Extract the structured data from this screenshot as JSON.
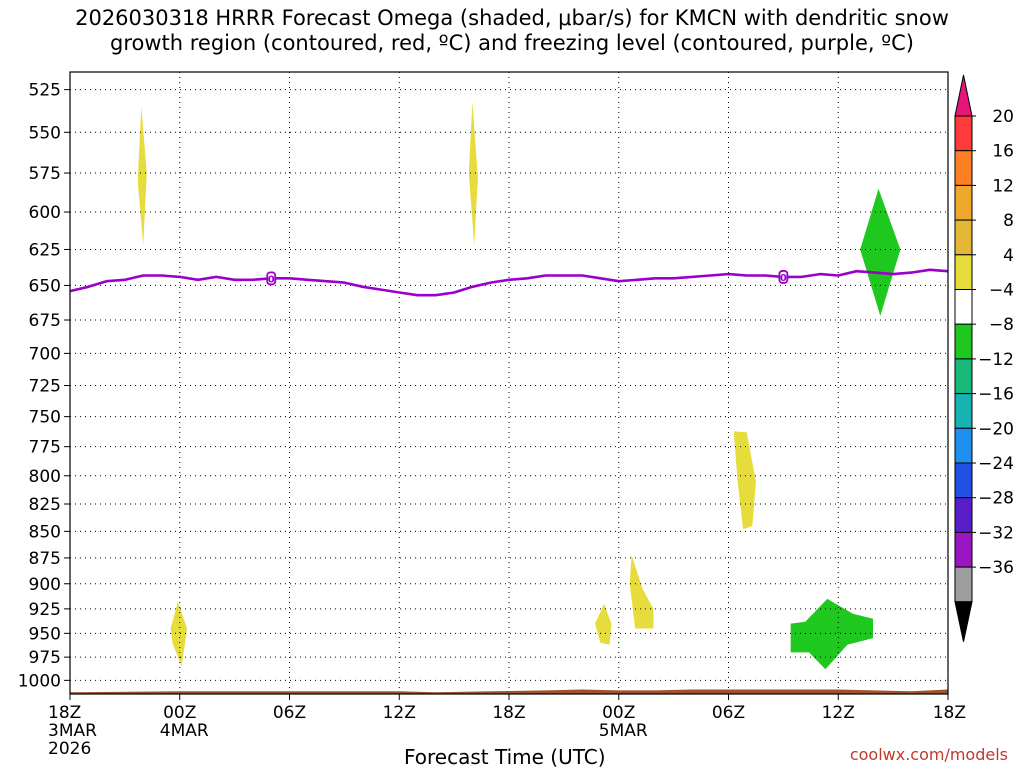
{
  "title": "2026030318 HRRR Forecast Omega (shaded, μbar/s) for KMCN with dendritic snow\ngrowth region (contoured, red, ºC) and freezing level (contoured, purple, ºC)",
  "credit": "coolwx.com/models",
  "chart_data": {
    "type": "heatmap",
    "title": "2026030318 HRRR Forecast Omega (shaded, μbar/s) for KMCN with dendritic snow growth region (contoured, red, ºC) and freezing level (contoured, purple, ºC)",
    "xlabel": "Forecast Time (UTC)",
    "ylabel": "",
    "x_unit": "forecast hour from 2026-03-03 18Z",
    "xlim": [
      0,
      48
    ],
    "ylim": [
      1015,
      515
    ],
    "y_scale": "log-pressure",
    "y_ticks": [
      525,
      550,
      575,
      600,
      625,
      650,
      675,
      700,
      725,
      750,
      775,
      800,
      825,
      850,
      875,
      900,
      925,
      950,
      975,
      1000
    ],
    "x_ticks": [
      {
        "hour": 0,
        "label": "18Z",
        "sub1": "3MAR",
        "sub2": "2026"
      },
      {
        "hour": 6,
        "label": "00Z",
        "sub1": "4MAR",
        "sub2": ""
      },
      {
        "hour": 12,
        "label": "06Z",
        "sub1": "",
        "sub2": ""
      },
      {
        "hour": 18,
        "label": "12Z",
        "sub1": "",
        "sub2": ""
      },
      {
        "hour": 24,
        "label": "18Z",
        "sub1": "",
        "sub2": ""
      },
      {
        "hour": 30,
        "label": "00Z",
        "sub1": "5MAR",
        "sub2": ""
      },
      {
        "hour": 36,
        "label": "06Z",
        "sub1": "",
        "sub2": ""
      },
      {
        "hour": 42,
        "label": "12Z",
        "sub1": "",
        "sub2": ""
      },
      {
        "hour": 48,
        "label": "18Z",
        "sub1": "",
        "sub2": ""
      }
    ],
    "grid": true,
    "colorbar": {
      "position": "right",
      "labels": [
        "20",
        "16",
        "12",
        "8",
        "4",
        "−4",
        "−8",
        "−12",
        "−16",
        "−20",
        "−24",
        "−28",
        "−32",
        "−36"
      ],
      "colors": [
        "#ff3a3a",
        "#ff7f24",
        "#f0a82c",
        "#e3b834",
        "#e6dc3c",
        "#ffffff",
        "#1ec81e",
        "#18b87a",
        "#17b3b3",
        "#2090f0",
        "#2050e6",
        "#5a1ec8",
        "#9b16c2",
        "#9e9e9e"
      ],
      "top_arrow_color": "#e6157a",
      "bottom_arrow_color": "#000000"
    },
    "freezing_level": {
      "color": "#9900cc",
      "label": "0",
      "points": [
        [
          0,
          654
        ],
        [
          1,
          651
        ],
        [
          2,
          647
        ],
        [
          3,
          646
        ],
        [
          4,
          643
        ],
        [
          5,
          643
        ],
        [
          6,
          644
        ],
        [
          7,
          646
        ],
        [
          8,
          644
        ],
        [
          9,
          646
        ],
        [
          10,
          646
        ],
        [
          11,
          645
        ],
        [
          12,
          645
        ],
        [
          13,
          646
        ],
        [
          14,
          647
        ],
        [
          15,
          648
        ],
        [
          16,
          651
        ],
        [
          17,
          653
        ],
        [
          18,
          655
        ],
        [
          19,
          657
        ],
        [
          20,
          657
        ],
        [
          21,
          655
        ],
        [
          22,
          651
        ],
        [
          23,
          648
        ],
        [
          24,
          646
        ],
        [
          25,
          645
        ],
        [
          26,
          643
        ],
        [
          27,
          643
        ],
        [
          28,
          643
        ],
        [
          29,
          645
        ],
        [
          30,
          647
        ],
        [
          31,
          646
        ],
        [
          32,
          645
        ],
        [
          33,
          645
        ],
        [
          34,
          644
        ],
        [
          35,
          643
        ],
        [
          36,
          642
        ],
        [
          37,
          643
        ],
        [
          38,
          643
        ],
        [
          39,
          644
        ],
        [
          40,
          644
        ],
        [
          41,
          642
        ],
        [
          42,
          643
        ],
        [
          43,
          640
        ],
        [
          44,
          641
        ],
        [
          45,
          642
        ],
        [
          46,
          641
        ],
        [
          47,
          639
        ],
        [
          48,
          640
        ]
      ],
      "label_positions": [
        [
          11,
          645
        ],
        [
          39,
          644
        ]
      ]
    },
    "omega_regions": [
      {
        "category": "4 to 8",
        "color": "#e6dc3c",
        "polygon": [
          [
            3.9,
            535
          ],
          [
            4.2,
            575
          ],
          [
            4.0,
            622
          ],
          [
            3.7,
            580
          ]
        ]
      },
      {
        "category": "4 to 8",
        "color": "#e6dc3c",
        "polygon": [
          [
            22.0,
            532
          ],
          [
            22.3,
            578
          ],
          [
            22.1,
            622
          ],
          [
            21.8,
            575
          ]
        ]
      },
      {
        "category": "4 to 8",
        "color": "#e6dc3c",
        "polygon": [
          [
            5.9,
            918
          ],
          [
            6.4,
            945
          ],
          [
            6.1,
            985
          ],
          [
            5.6,
            960
          ],
          [
            5.5,
            945
          ]
        ]
      },
      {
        "category": "4 to 8",
        "color": "#e6dc3c",
        "polygon": [
          [
            29.2,
            920
          ],
          [
            29.6,
            940
          ],
          [
            29.5,
            962
          ],
          [
            29.0,
            960
          ],
          [
            28.7,
            940
          ]
        ]
      },
      {
        "category": "4 to 8",
        "color": "#e6dc3c",
        "polygon": [
          [
            30.7,
            872
          ],
          [
            31.3,
            905
          ],
          [
            31.9,
            925
          ],
          [
            31.9,
            945
          ],
          [
            30.9,
            945
          ],
          [
            30.6,
            900
          ]
        ]
      },
      {
        "category": "4 to 8",
        "color": "#e6dc3c",
        "polygon": [
          [
            36.3,
            762
          ],
          [
            37.0,
            763
          ],
          [
            37.5,
            805
          ],
          [
            37.3,
            845
          ],
          [
            36.8,
            848
          ],
          [
            36.5,
            805
          ],
          [
            36.3,
            765
          ]
        ]
      },
      {
        "category": "-4 to -8",
        "color": "#1ec81e",
        "polygon": [
          [
            44.2,
            585
          ],
          [
            45.4,
            625
          ],
          [
            44.3,
            672
          ],
          [
            43.2,
            625
          ]
        ]
      },
      {
        "category": "-4 to -8",
        "color": "#1ec81e",
        "polygon": [
          [
            39.4,
            940
          ],
          [
            40.2,
            938
          ],
          [
            41.4,
            915
          ],
          [
            42.8,
            930
          ],
          [
            43.9,
            935
          ],
          [
            43.9,
            955
          ],
          [
            42.5,
            962
          ],
          [
            41.3,
            988
          ],
          [
            40.4,
            970
          ],
          [
            39.4,
            970
          ]
        ]
      }
    ],
    "terrain": {
      "color": "#a0522d",
      "top_points": [
        [
          0,
          1013
        ],
        [
          6,
          1012
        ],
        [
          12,
          1012
        ],
        [
          18,
          1012
        ],
        [
          20,
          1013
        ],
        [
          23,
          1012
        ],
        [
          26,
          1011
        ],
        [
          28,
          1010
        ],
        [
          30,
          1011
        ],
        [
          32,
          1011
        ],
        [
          34,
          1010
        ],
        [
          36,
          1010
        ],
        [
          40,
          1010
        ],
        [
          42,
          1010
        ],
        [
          44,
          1011
        ],
        [
          46,
          1012
        ],
        [
          47,
          1011
        ],
        [
          48,
          1010
        ]
      ]
    }
  }
}
